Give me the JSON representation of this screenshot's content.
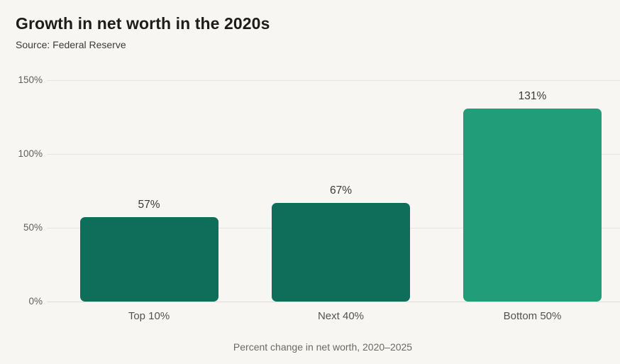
{
  "chart": {
    "title": "Growth in net worth in the 2020s",
    "source": "Source: Federal Reserve",
    "caption": "Percent change in net worth, 2020–2025"
  },
  "chart_data": {
    "type": "bar",
    "title": "Growth in net worth in the 2020s",
    "subtitle": "Source: Federal Reserve",
    "categories": [
      "Top 10%",
      "Next 40%",
      "Bottom 50%"
    ],
    "values": [
      57,
      67,
      131
    ],
    "data_labels": [
      "57%",
      "67%",
      "131%"
    ],
    "bar_colors": [
      "#0f6e5a",
      "#0f6e5a",
      "#219e79"
    ],
    "xlabel": "Percent change in net worth, 2020–2025",
    "ylabel": "",
    "ylim": [
      0,
      150
    ],
    "yticks": [
      {
        "value": 0,
        "label": "0%"
      },
      {
        "value": 50,
        "label": "50%"
      },
      {
        "value": 100,
        "label": "100%"
      },
      {
        "value": 150,
        "label": "150%"
      }
    ],
    "grid": true,
    "legend": false,
    "colors": {
      "background": "#f7f6f3",
      "gridline": "#e7e5e0",
      "bar_dark": "#0f6e5a",
      "bar_light": "#219e79"
    }
  }
}
